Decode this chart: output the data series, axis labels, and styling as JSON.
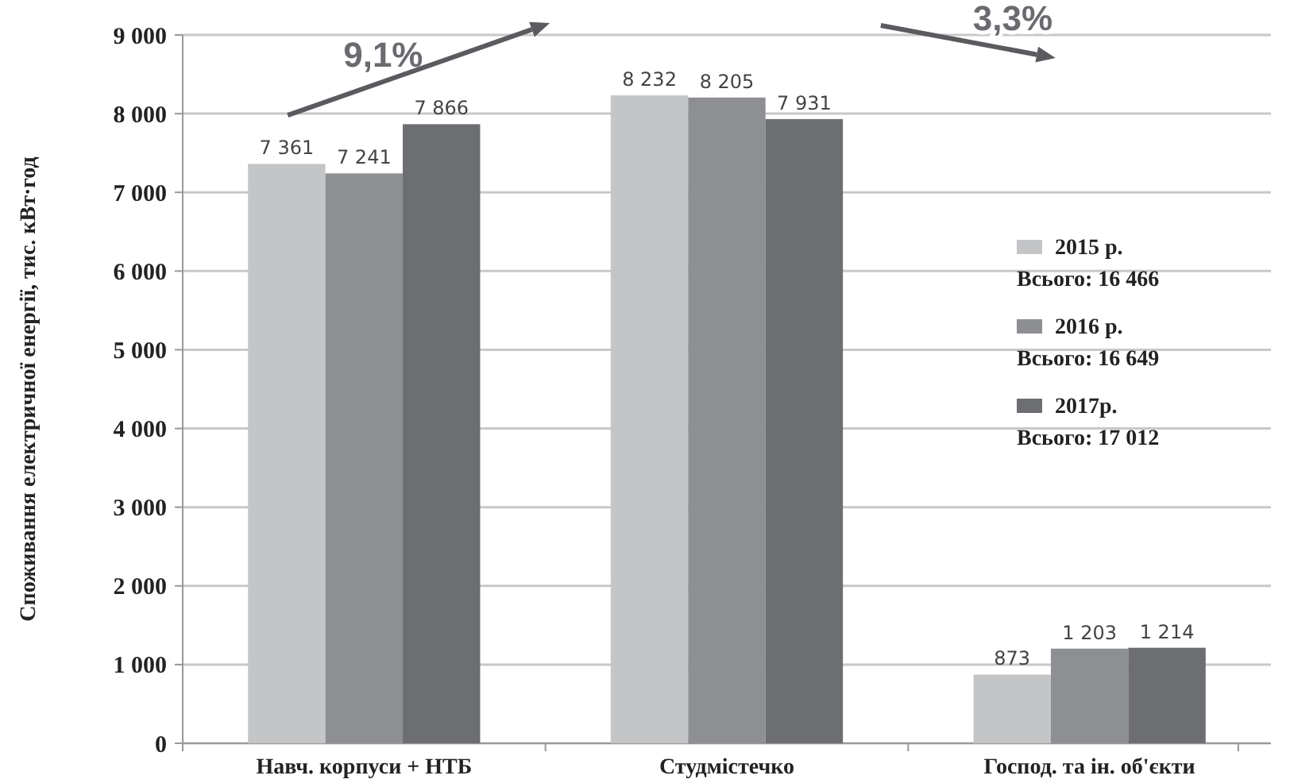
{
  "chart_data": {
    "type": "bar",
    "ylabel": "Споживання електричної енергії, тис. кВт·год",
    "categories": [
      "Навч. корпуси + НТБ",
      "Студмістечко",
      "Господ. та ін. об'єкти"
    ],
    "series": [
      {
        "name": "2015 р.\nВсього: 16 466",
        "color": "#c4c5c7",
        "values": [
          7361,
          8232,
          873
        ],
        "value_labels": [
          "7 361",
          "8 232",
          "873"
        ]
      },
      {
        "name": "2016 р.\nВсього: 16 649",
        "color": "#8e8f93",
        "values": [
          7241,
          8205,
          1203
        ],
        "value_labels": [
          "7 241",
          "8 205",
          "1 203"
        ]
      },
      {
        "name": "2017р.\nВсього: 17 012",
        "color": "#6d6e72",
        "values": [
          7866,
          7931,
          1214
        ],
        "value_labels": [
          "7 866",
          "7 931",
          "1 214"
        ]
      }
    ],
    "ylim": [
      0,
      9000
    ],
    "yticks": [
      0,
      {
        "value": 1000,
        "label": "1 000"
      },
      {
        "value": 2000,
        "label": "2 000"
      },
      {
        "value": 3000,
        "label": "3 000"
      },
      {
        "value": 4000,
        "label": "4 000"
      },
      {
        "value": 5000,
        "label": "5 000"
      },
      {
        "value": 6000,
        "label": "6 000"
      },
      {
        "value": 7000,
        "label": "7 000"
      },
      {
        "value": 8000,
        "label": "8 000"
      },
      {
        "value": 9000,
        "label": "9 000"
      }
    ],
    "grid": "y",
    "legend": "right",
    "annotations": [
      "9,1%",
      "3,3%"
    ]
  }
}
